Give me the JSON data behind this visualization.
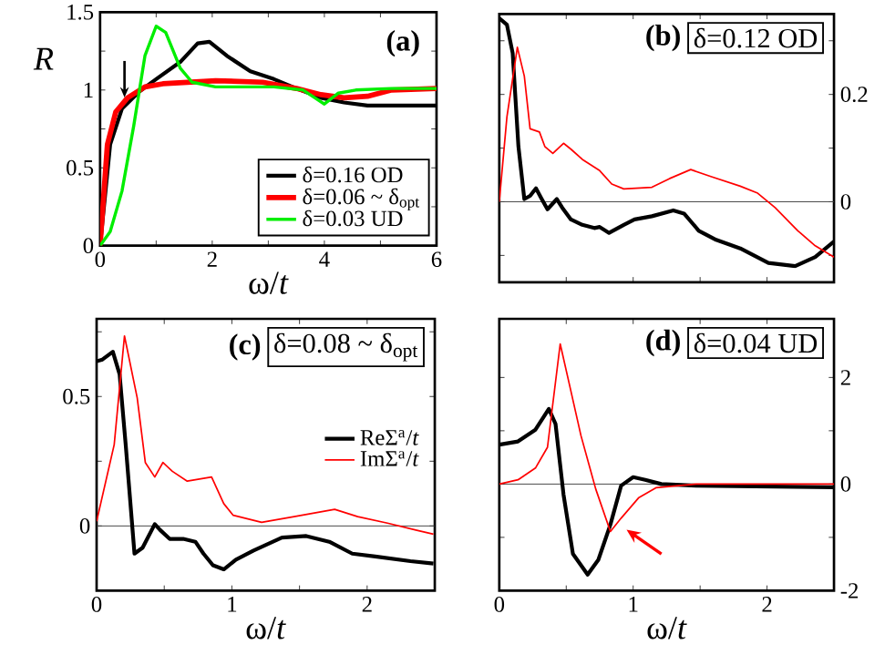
{
  "chart_data": [
    {
      "type": "line",
      "title": "(a)",
      "xlabel": "ω/*t*",
      "ylabel": "*R*",
      "xlim": [
        0,
        6
      ],
      "ylim": [
        0,
        1.5
      ],
      "xticks": [
        0,
        {
          "value": 1,
          "label": null
        },
        2,
        {
          "value": 3,
          "label": null
        },
        4,
        {
          "value": 5,
          "label": null
        },
        6
      ],
      "yticks": [
        0,
        {
          "value": 0.25,
          "label": null
        },
        0.5,
        {
          "value": 0.75,
          "label": null
        },
        1,
        {
          "value": 1.25,
          "label": null
        },
        1.5
      ],
      "legend": "bottom right",
      "series": [
        {
          "name": "δ=0.16   OD",
          "color": "#000000",
          "x": [
            0,
            0.18,
            0.39,
            0.7,
            1.0,
            1.43,
            1.74,
            1.95,
            2.26,
            2.68,
            3.1,
            3.5,
            3.94,
            4.35,
            4.77,
            5.4,
            6
          ],
          "values": [
            0,
            0.65,
            0.88,
            0.99,
            1.07,
            1.18,
            1.3,
            1.31,
            1.22,
            1.12,
            1.07,
            1.01,
            0.95,
            0.92,
            0.9,
            0.9,
            0.9
          ]
        },
        {
          "name": "δ=0.06 ~ δ$_{opt}$",
          "color": "#ff0000",
          "x": [
            0,
            0.13,
            0.28,
            0.49,
            0.8,
            1.12,
            2.06,
            2.9,
            3.5,
            3.94,
            4.35,
            4.77,
            5.2,
            6
          ],
          "values": [
            0,
            0.65,
            0.86,
            0.95,
            1.02,
            1.04,
            1.06,
            1.05,
            1.01,
            0.97,
            0.95,
            0.96,
            1.0,
            1.01
          ]
        },
        {
          "name": "δ=0.03   UD",
          "color": "#00ee00",
          "x": [
            0,
            0.18,
            0.39,
            0.6,
            0.8,
            1.0,
            1.17,
            1.43,
            1.64,
            2.06,
            3.1,
            3.62,
            3.83,
            4.0,
            4.25,
            4.56,
            5.2,
            6
          ],
          "values": [
            0,
            0.09,
            0.35,
            0.77,
            1.22,
            1.41,
            1.37,
            1.14,
            1.05,
            1.02,
            1.02,
            1.0,
            0.95,
            0.91,
            0.98,
            1.0,
            1.01,
            1.01
          ]
        }
      ]
    },
    {
      "type": "line",
      "title": "(b)",
      "annotations": [
        "δ=0.12   OD"
      ],
      "xlim": [
        0,
        2.5
      ],
      "ylim": [
        -0.15,
        0.35
      ],
      "tick_labels": "y",
      "xticks": [
        {
          "value": 0.5,
          "label": null
        },
        {
          "value": 1,
          "label": null
        },
        {
          "value": 1.5,
          "label": null
        },
        {
          "value": 2,
          "label": null
        }
      ],
      "yticks": [
        {
          "value": -0.1,
          "label": null
        },
        0,
        {
          "value": 0.1,
          "label": null
        },
        0.2,
        {
          "value": 0.3,
          "label": null
        }
      ],
      "ref_lines": [
        {
          "axis": "y",
          "value": 0
        }
      ],
      "series": [
        {
          "color": "#000000",
          "x": [
            0,
            0.057,
            0.1,
            0.143,
            0.187,
            0.23,
            0.274,
            0.317,
            0.36,
            0.43,
            0.47,
            0.535,
            0.62,
            0.71,
            0.75,
            0.82,
            0.93,
            1.01,
            1.14,
            1.3,
            1.38,
            1.49,
            1.62,
            1.8,
            2.01,
            2.21,
            2.36,
            2.5
          ],
          "values": [
            0.342,
            0.33,
            0.277,
            0.103,
            0.005,
            0.011,
            0.025,
            0.005,
            -0.014,
            0.005,
            -0.011,
            -0.033,
            -0.043,
            -0.049,
            -0.047,
            -0.058,
            -0.043,
            -0.033,
            -0.027,
            -0.016,
            -0.022,
            -0.054,
            -0.071,
            -0.087,
            -0.114,
            -0.12,
            -0.103,
            -0.074
          ]
        },
        {
          "color": "#ff0000",
          "x": [
            0,
            0.057,
            0.135,
            0.187,
            0.23,
            0.3,
            0.34,
            0.4,
            0.48,
            0.535,
            0.62,
            0.75,
            0.84,
            0.93,
            1.14,
            1.27,
            1.43,
            1.58,
            1.8,
            1.93,
            2.06,
            2.23,
            2.36,
            2.5
          ],
          "values": [
            0,
            0.158,
            0.288,
            0.234,
            0.136,
            0.13,
            0.103,
            0.09,
            0.109,
            0.098,
            0.079,
            0.058,
            0.033,
            0.024,
            0.027,
            0.043,
            0.06,
            0.047,
            0.029,
            0.016,
            -0.011,
            -0.054,
            -0.082,
            -0.103
          ]
        }
      ]
    },
    {
      "type": "line",
      "title": "(c)",
      "annotations": [
        "δ=0.08 ~ δ$_{opt}$"
      ],
      "xlabel": "ω/*t*",
      "xlim": [
        0,
        2.5
      ],
      "ylim": [
        -0.25,
        0.8
      ],
      "legend": "right",
      "xticks": [
        0,
        {
          "value": 0.5,
          "label": null
        },
        1,
        {
          "value": 1.5,
          "label": null
        },
        2
      ],
      "yticks": [
        {
          "value": -0.25,
          "label": null
        },
        0,
        {
          "value": 0.25,
          "label": null
        },
        0.5,
        {
          "value": 0.75,
          "label": null
        }
      ],
      "ref_lines": [
        {
          "axis": "y",
          "value": 0
        }
      ],
      "series": [
        {
          "name": "ReΣ$^{a}$/*t*",
          "color": "#000000",
          "x": [
            0,
            0.043,
            0.12,
            0.17,
            0.215,
            0.28,
            0.34,
            0.43,
            0.47,
            0.54,
            0.64,
            0.73,
            0.79,
            0.86,
            0.94,
            1.03,
            1.16,
            1.37,
            1.55,
            1.72,
            1.89,
            2.06,
            2.32,
            2.49
          ],
          "values": [
            0.636,
            0.643,
            0.673,
            0.586,
            0.314,
            -0.107,
            -0.084,
            0.007,
            -0.016,
            -0.05,
            -0.05,
            -0.061,
            -0.107,
            -0.152,
            -0.168,
            -0.13,
            -0.095,
            -0.045,
            -0.039,
            -0.061,
            -0.107,
            -0.118,
            -0.136,
            -0.145
          ]
        },
        {
          "name": "ImΣ$^{a}$/*t*",
          "color": "#ff0000",
          "x": [
            0,
            0.13,
            0.206,
            0.3,
            0.36,
            0.43,
            0.49,
            0.56,
            0.67,
            0.77,
            0.85,
            0.94,
            1.01,
            1.22,
            1.46,
            1.76,
            1.93,
            2.15,
            2.36,
            2.49
          ],
          "values": [
            0.018,
            0.314,
            0.734,
            0.495,
            0.245,
            0.189,
            0.245,
            0.211,
            0.173,
            0.182,
            0.189,
            0.086,
            0.041,
            0.014,
            0.036,
            0.064,
            0.036,
            0.011,
            -0.016,
            -0.032
          ]
        }
      ]
    },
    {
      "type": "line",
      "title": "(d)",
      "annotations": [
        "δ=0.04   UD"
      ],
      "xlabel": "ω/*t*",
      "xlim": [
        0,
        2.5
      ],
      "ylim": [
        -2,
        3.1
      ],
      "xticks": [
        0,
        {
          "value": 0.5,
          "label": null
        },
        1,
        {
          "value": 1.5,
          "label": null
        },
        2
      ],
      "yticks": [
        -2,
        {
          "value": -1,
          "label": null
        },
        0,
        {
          "value": 1,
          "label": null
        },
        2
      ],
      "ref_lines": [
        {
          "axis": "y",
          "value": 0
        }
      ],
      "series": [
        {
          "color": "#000000",
          "x": [
            0,
            0.14,
            0.27,
            0.37,
            0.42,
            0.48,
            0.55,
            0.66,
            0.74,
            0.83,
            0.91,
            1.0,
            1.09,
            1.21,
            1.47,
            2.5
          ],
          "values": [
            0.74,
            0.8,
            1.02,
            1.41,
            1.13,
            -0.2,
            -1.31,
            -1.7,
            -1.42,
            -0.76,
            -0.03,
            0.13,
            0.08,
            0,
            -0.03,
            -0.06
          ]
        },
        {
          "color": "#ff0000",
          "x": [
            0,
            0.14,
            0.27,
            0.36,
            0.455,
            0.53,
            0.61,
            0.72,
            0.83,
            0.91,
            1.04,
            1.17,
            1.47,
            2.5
          ],
          "values": [
            0,
            0.08,
            0.3,
            0.69,
            2.63,
            1.8,
            0.91,
            -0.09,
            -0.89,
            -0.64,
            -0.26,
            -0.07,
            0,
            0
          ]
        }
      ]
    }
  ]
}
